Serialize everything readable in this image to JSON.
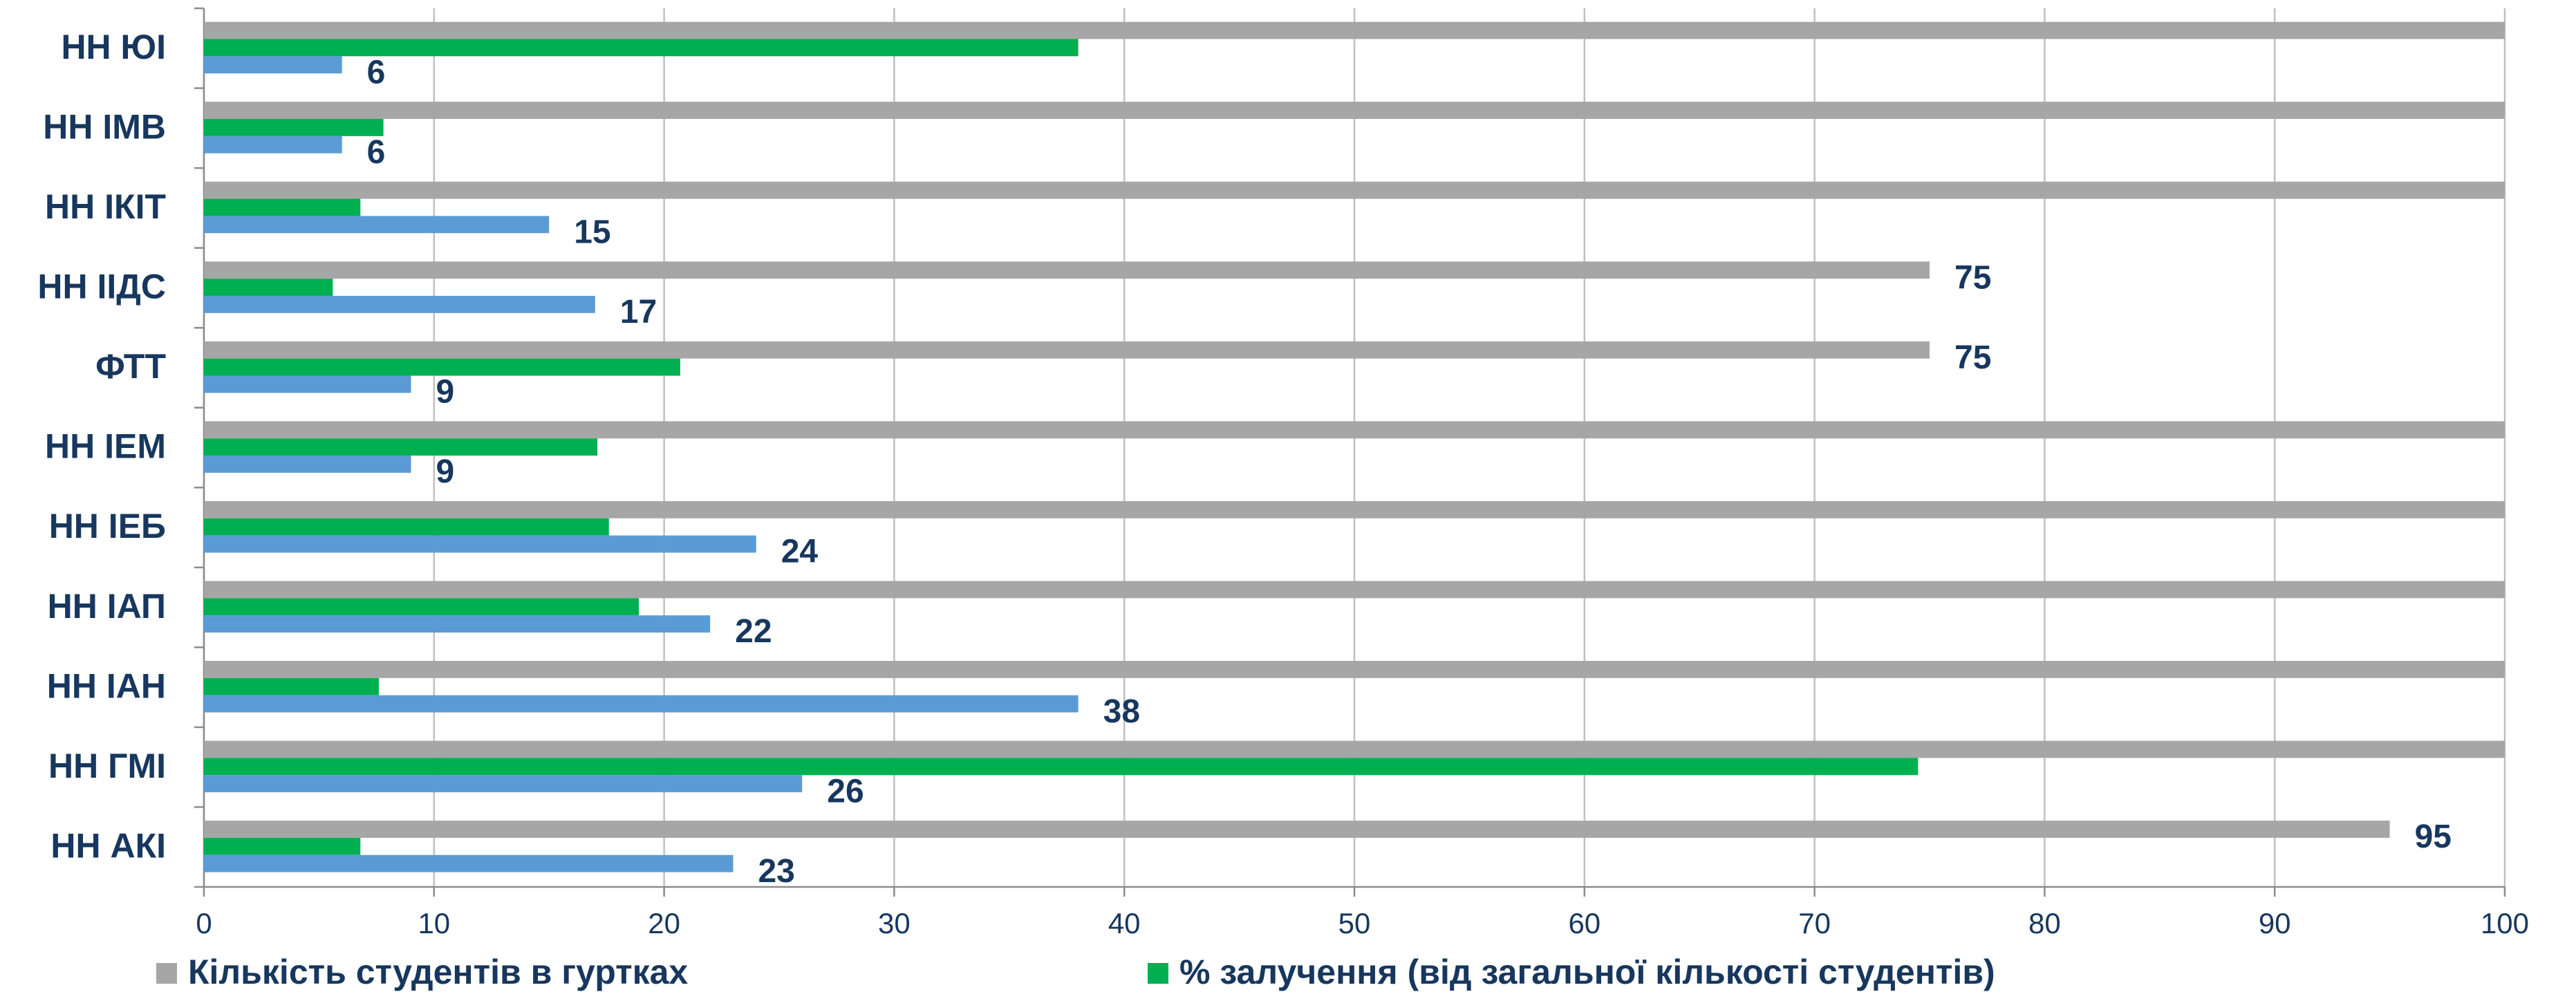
{
  "chart_data": {
    "type": "hbar",
    "categories": [
      "НН ЮІ",
      "НН ІМВ",
      "НН ІКІТ",
      "НН ІІДС",
      "ФТТ",
      "НН ІЕМ",
      "НН ІЕБ",
      "НН ІАП",
      "НН ІАН",
      "НН ГМІ",
      "НН АКІ"
    ],
    "series": [
      {
        "name": "Кількість студентів в гуртках",
        "color": "#a6a6a6",
        "values": [
          100,
          100,
          100,
          75,
          75,
          100,
          100,
          100,
          100,
          100,
          95
        ],
        "value_labels": [
          null,
          null,
          null,
          "75",
          "75",
          null,
          null,
          null,
          null,
          null,
          "95"
        ]
      },
      {
        "name": "% залучення (від загальної кількості студентів)",
        "color": "#00b050",
        "values": [
          38,
          7.8,
          6.8,
          5.6,
          20.7,
          17.1,
          17.6,
          18.9,
          7.6,
          74.5,
          6.8
        ]
      },
      {
        "color": "#5b9bd5",
        "values": [
          6,
          6,
          15,
          17,
          9,
          9,
          24,
          22,
          38,
          26,
          23
        ],
        "value_labels": [
          "6",
          "6",
          "15",
          "17",
          "9",
          "9",
          "24",
          "22",
          "38",
          "26",
          "23"
        ]
      }
    ],
    "xlim": [
      0,
      100
    ],
    "xticks": [
      0,
      10,
      20,
      30,
      40,
      50,
      60,
      70,
      80,
      90,
      100
    ],
    "grid": true
  }
}
